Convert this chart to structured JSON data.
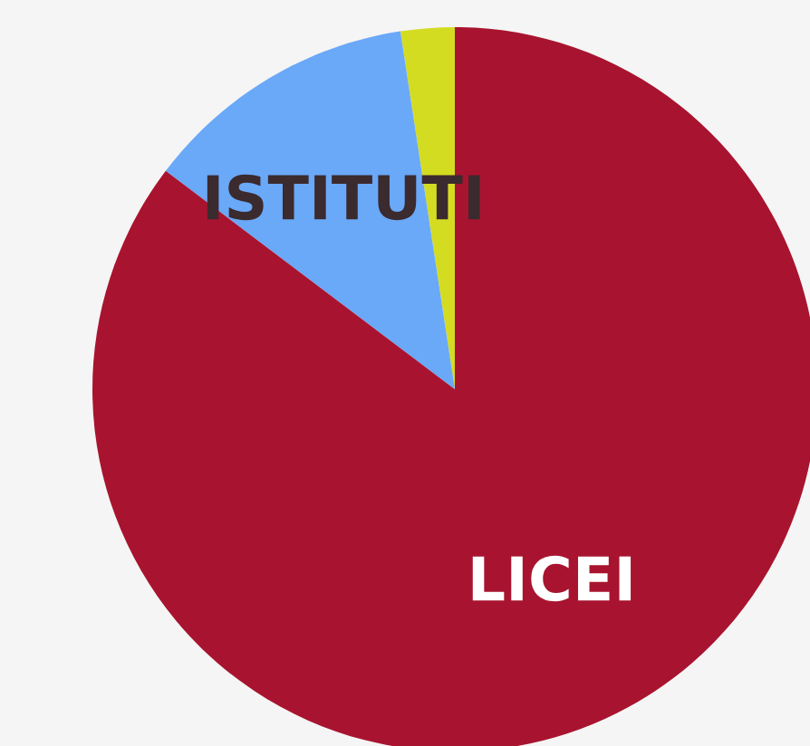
{
  "chart_data": {
    "type": "pie",
    "categories": [
      null,
      "ISTITUTI",
      "LICEI"
    ],
    "values": [
      2.4,
      12.3,
      85.3
    ],
    "colors": [
      "#d4dc22",
      "#6aa8f8",
      "#a8142f"
    ]
  }
}
